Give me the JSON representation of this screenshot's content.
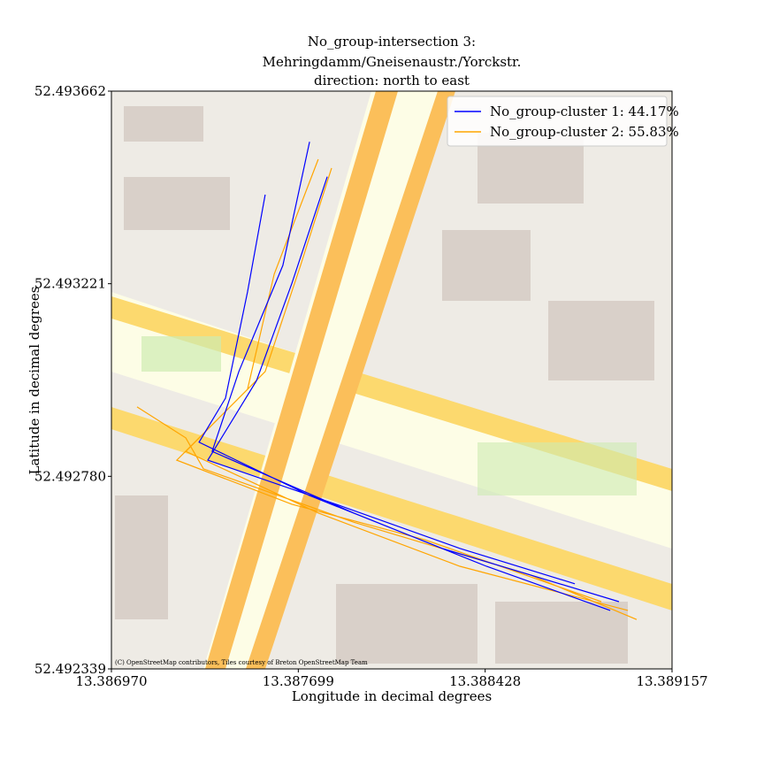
{
  "chart_data": {
    "type": "line",
    "title": "No_group-intersection 3:",
    "subtitle": "Mehringdamm/Gneisenaustr./Yorckstr.",
    "subtitle2": "direction: north to east",
    "x_label": "Longitude in decimal degrees",
    "y_label": "Latitude in decimal degrees",
    "attribution": "(C) OpenStreetMap contributors, Tiles courtesy of Breton OpenStreetMap Team",
    "legend_position": "upper right",
    "xlim": [
      13.38697,
      13.389157
    ],
    "ylim": [
      52.492339,
      52.493662
    ],
    "xticks": [
      {
        "value": 13.38697,
        "label": "13.386970"
      },
      13.387699,
      13.388428,
      13.389157
    ],
    "yticks": [
      52.492339,
      {
        "value": 52.49278,
        "label": "52.492780"
      },
      52.493221,
      52.493662
    ],
    "series": [
      {
        "name": "No_group-cluster 1: 44.17%",
        "color": "#0000ff",
        "x": [
          13.387743,
          13.387639,
          13.387467,
          13.387363,
          13.387915,
          13.388433,
          13.388916,
          null,
          13.387812,
          13.387674,
          13.387536,
          13.387346,
          13.387846,
          13.388329,
          13.388778,
          null,
          13.38757,
          13.387501,
          13.387415,
          13.387312,
          13.387743,
          13.38826,
          13.38895
        ],
        "y": [
          52.493546,
          52.493263,
          52.49302,
          52.492837,
          52.492696,
          52.492574,
          52.492473,
          null,
          52.493466,
          52.493222,
          52.492999,
          52.492817,
          52.492716,
          52.492615,
          52.492534,
          null,
          52.493425,
          52.493202,
          52.492959,
          52.492858,
          52.492736,
          52.492615,
          52.492493
        ]
      },
      {
        "name": "No_group-cluster 2: 55.83%",
        "color": "#ffa500",
        "x": [
          13.387829,
          13.387708,
          13.38757,
          13.38726,
          13.387777,
          13.388329,
          13.388985,
          null,
          13.387777,
          13.387605,
          13.387501,
          13.387225,
          13.387674,
          13.388191,
          13.388881,
          null,
          13.38707,
          13.38726,
          13.387329,
          13.387915,
          13.388605,
          13.389019
        ],
        "y": [
          52.493486,
          52.493263,
          52.49302,
          52.492837,
          52.492696,
          52.492574,
          52.492473,
          null,
          52.493506,
          52.493243,
          52.492979,
          52.492817,
          52.492716,
          52.492635,
          52.492493,
          null,
          52.492939,
          52.492868,
          52.492797,
          52.492675,
          52.492554,
          52.492452
        ]
      }
    ]
  }
}
